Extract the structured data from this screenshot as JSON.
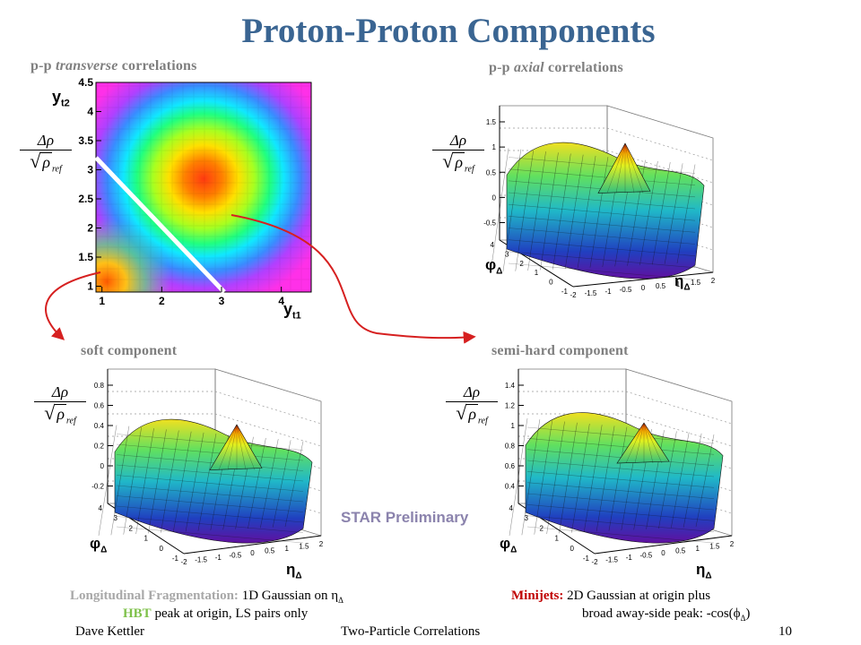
{
  "title": "Proton-Proton Components",
  "panels": {
    "transverse": {
      "title_prefix": "p-p",
      "title_em": "transverse",
      "title_suffix": "correlations",
      "x_label": "y",
      "x_sub": "t1",
      "y_label": "y",
      "y_sub": "t2",
      "x_ticks": [
        "1",
        "2",
        "3",
        "4"
      ],
      "y_ticks": [
        "1",
        "1.5",
        "2",
        "2.5",
        "3",
        "3.5",
        "4",
        "4.5"
      ]
    },
    "axial": {
      "title_prefix": "p-p",
      "title_em": "axial",
      "title_suffix": "correlations",
      "z_ticks": [
        "1.5",
        "1",
        "0.5",
        "0",
        "-0.5"
      ],
      "eta_ticks": [
        "-2",
        "-1.5",
        "-1",
        "-0.5",
        "0",
        "0.5",
        "1",
        "1.5",
        "2"
      ],
      "phi_ticks": [
        "4",
        "3",
        "2",
        "1",
        "0",
        "-1"
      ]
    },
    "soft": {
      "title": "soft component",
      "z_ticks": [
        "0.8",
        "0.6",
        "0.4",
        "0.2",
        "0",
        "-0.2"
      ],
      "eta_ticks": [
        "-2",
        "-1.5",
        "-1",
        "-0.5",
        "0",
        "0.5",
        "1",
        "1.5",
        "2"
      ],
      "phi_ticks": [
        "4",
        "3",
        "2",
        "1",
        "0",
        "-1"
      ]
    },
    "semihard": {
      "title": "semi-hard component",
      "z_ticks": [
        "1.4",
        "1.2",
        "1",
        "0.8",
        "0.6",
        "0.4"
      ],
      "eta_ticks": [
        "-2",
        "-1.5",
        "-1",
        "-0.5",
        "0",
        "0.5",
        "1",
        "1.5",
        "2"
      ],
      "phi_ticks": [
        "4",
        "3",
        "2",
        "1",
        "0",
        "-1"
      ]
    }
  },
  "axis_symbols": {
    "phi": "φ",
    "eta": "η",
    "delta": "Δ"
  },
  "ylabel": {
    "numerator": "Δρ",
    "rho": "ρ",
    "sub": "ref",
    "root": "√"
  },
  "star_preliminary": "STAR Preliminary",
  "captions": {
    "lf_label": "Longitudinal Fragmentation:",
    "lf_text": "1D Gaussian on η",
    "hbt_label": "HBT",
    "hbt_text": "peak at origin, LS pairs only",
    "mj_label": "Minijets:",
    "mj_text": "2D Gaussian at origin plus",
    "mj_text2_a": "broad away-side peak: -cos(ϕ",
    "mj_text2_b": ")"
  },
  "footer": {
    "author": "Dave Kettler",
    "subject": "Two-Particle Correlations",
    "page": "10"
  },
  "colors": {
    "title": "#3a6592",
    "arrow": "#d62020",
    "diagonal": "#ffffff"
  }
}
